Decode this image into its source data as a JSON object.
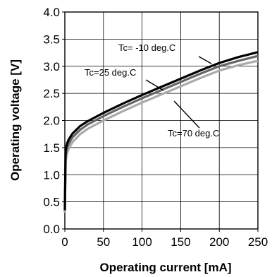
{
  "chart_data": {
    "type": "line",
    "title": "",
    "xlabel": "Operating current [mA]",
    "ylabel": "Operating voltage [V]",
    "xlim": [
      0,
      250
    ],
    "ylim": [
      0,
      4.0
    ],
    "xticks": [
      0,
      50,
      100,
      150,
      200,
      250
    ],
    "yticks": [
      0.0,
      0.5,
      1.0,
      1.5,
      2.0,
      2.5,
      3.0,
      3.5,
      4.0
    ],
    "xtick_labels": [
      "0",
      "50",
      "100",
      "150",
      "200",
      "250"
    ],
    "ytick_labels": [
      "0.0",
      "0.5",
      "1.0",
      "1.5",
      "2.0",
      "2.5",
      "3.0",
      "3.5",
      "4.0"
    ],
    "grid": true,
    "series": [
      {
        "name": "Tc= -10 deg.C",
        "color": "#000000",
        "x": [
          0,
          1,
          3,
          5,
          10,
          20,
          30,
          50,
          75,
          100,
          125,
          150,
          175,
          200,
          225,
          250
        ],
        "y": [
          0.35,
          1.45,
          1.58,
          1.65,
          1.76,
          1.9,
          1.99,
          2.14,
          2.31,
          2.47,
          2.62,
          2.77,
          2.92,
          3.06,
          3.17,
          3.26
        ]
      },
      {
        "name": "Tc=25 deg.C",
        "color": "#666666",
        "x": [
          0,
          1,
          3,
          5,
          10,
          20,
          30,
          50,
          75,
          100,
          125,
          150,
          175,
          200,
          225,
          250
        ],
        "y": [
          0.33,
          1.36,
          1.5,
          1.57,
          1.69,
          1.83,
          1.93,
          2.08,
          2.25,
          2.41,
          2.56,
          2.71,
          2.86,
          3.0,
          3.1,
          3.19
        ]
      },
      {
        "name": "Tc=70 deg.C",
        "color": "#aaaaaa",
        "x": [
          0,
          1,
          3,
          5,
          10,
          20,
          30,
          50,
          75,
          100,
          125,
          150,
          175,
          200,
          225,
          250
        ],
        "y": [
          0.3,
          1.25,
          1.4,
          1.48,
          1.6,
          1.75,
          1.85,
          2.0,
          2.17,
          2.33,
          2.48,
          2.63,
          2.78,
          2.92,
          3.02,
          3.1
        ]
      }
    ],
    "annotations": [
      {
        "text": "Tc= -10 deg.C",
        "series": 0
      },
      {
        "text": "Tc=25 deg.C",
        "series": 1
      },
      {
        "text": "Tc=70 deg.C",
        "series": 2
      }
    ]
  }
}
